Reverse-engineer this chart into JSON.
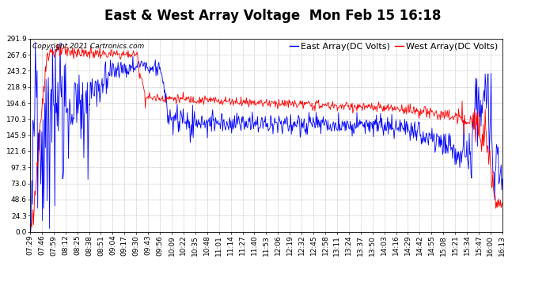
{
  "title": "East & West Array Voltage  Mon Feb 15 16:18",
  "copyright": "Copyright 2021 Cartronics.com",
  "legend_east": "East Array(DC Volts)",
  "legend_west": "West Array(DC Volts)",
  "color_east": "#0000ff",
  "color_west": "#ff0000",
  "color_bg": "#ffffff",
  "color_grid": "#aaaaaa",
  "ymin": 0.0,
  "ymax": 291.9,
  "yticks": [
    0.0,
    24.3,
    48.6,
    73.0,
    97.3,
    121.6,
    145.9,
    170.3,
    194.6,
    218.9,
    243.2,
    267.6,
    291.9
  ],
  "xtick_labels": [
    "07:29",
    "07:46",
    "07:59",
    "08:12",
    "08:25",
    "08:38",
    "08:51",
    "09:04",
    "09:17",
    "09:30",
    "09:43",
    "09:56",
    "10:09",
    "10:22",
    "10:35",
    "10:48",
    "11:01",
    "11:14",
    "11:27",
    "11:40",
    "11:53",
    "12:06",
    "12:19",
    "12:32",
    "12:45",
    "12:58",
    "13:11",
    "13:24",
    "13:37",
    "13:50",
    "14:03",
    "14:16",
    "14:29",
    "14:42",
    "14:55",
    "15:08",
    "15:21",
    "15:34",
    "15:47",
    "16:00",
    "16:13"
  ],
  "title_fontsize": 12,
  "axis_fontsize": 6.5,
  "copyright_fontsize": 6.5,
  "legend_fontsize": 8,
  "linewidth": 0.6,
  "figwidth": 6.9,
  "figheight": 3.75,
  "dpi": 100
}
